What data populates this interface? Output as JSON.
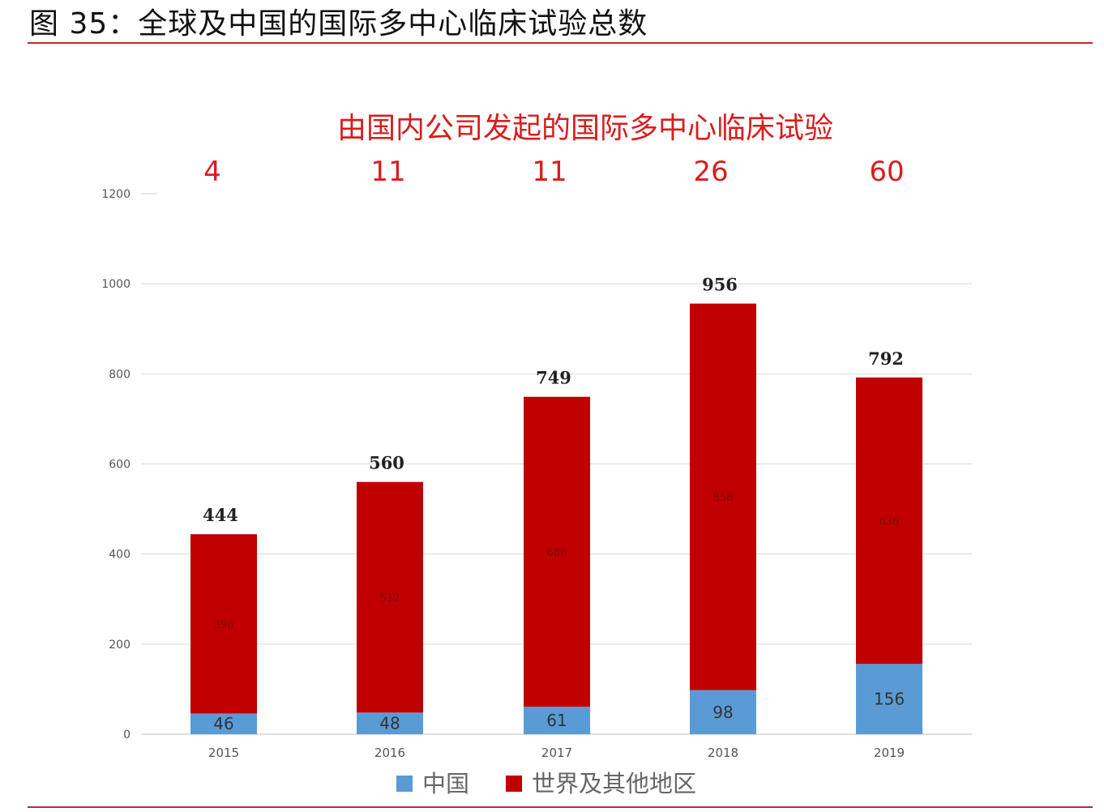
{
  "figure": {
    "title": "图 35：全球及中国的国际多中心临床试验总数"
  },
  "colors": {
    "china": "#5b9bd5",
    "world": "#c00000",
    "accent_red": "#d71e1e",
    "rule": "#c0282b"
  },
  "chart_data": {
    "type": "bar",
    "stacked": true,
    "subtitle": "由国内公司发起的国际多中心临床试验",
    "top_values": [
      "4",
      "11",
      "11",
      "26",
      "60"
    ],
    "categories": [
      "2015",
      "2016",
      "2017",
      "2018",
      "2019"
    ],
    "series": [
      {
        "name": "中国",
        "values": [
          46,
          48,
          61,
          98,
          156
        ],
        "color_key": "china"
      },
      {
        "name": "世界及其他地区",
        "values": [
          398,
          512,
          688,
          858,
          636
        ],
        "color_key": "world"
      }
    ],
    "totals": [
      444,
      560,
      749,
      956,
      792
    ],
    "ylim": [
      0,
      1200
    ],
    "yticks": [
      0,
      200,
      400,
      600,
      800,
      1000,
      1200
    ],
    "grid": true,
    "legend_position": "bottom",
    "xlabel": "",
    "ylabel": ""
  }
}
